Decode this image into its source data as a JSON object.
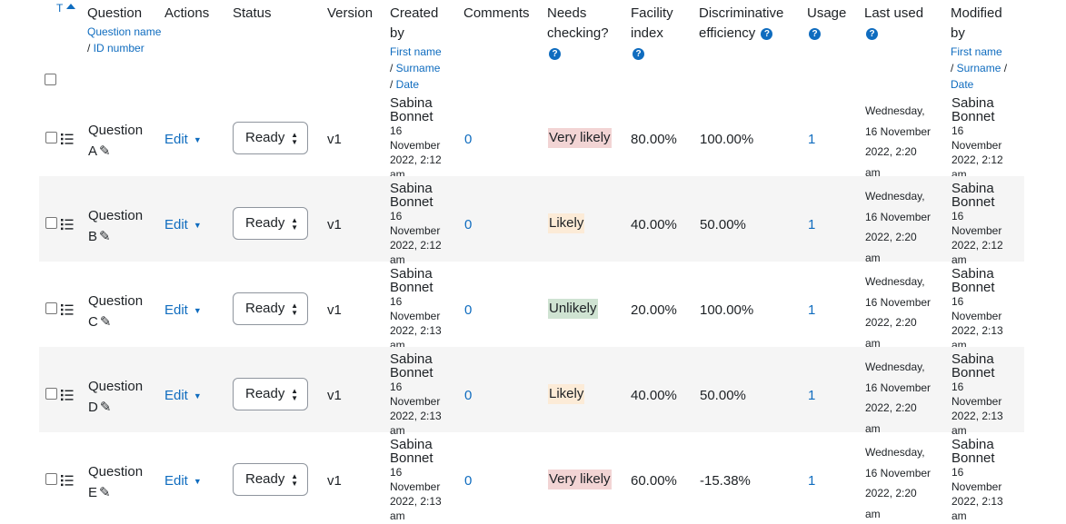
{
  "header": {
    "sort_t": "T",
    "question": "Question",
    "question_name": "Question name",
    "id_number": "ID number",
    "actions": "Actions",
    "status": "Status",
    "version": "Version",
    "created_by_1": "Created",
    "created_by_2": "by",
    "first_name": "First name",
    "surname": "Surname",
    "date": "Date",
    "comments": "Comments",
    "needs_checking_1": "Needs",
    "needs_checking_2": "checking?",
    "facility_1": "Facility",
    "facility_2": "index",
    "disc_1": "Discriminative",
    "disc_2": "efficiency",
    "usage": "Usage",
    "last_used": "Last used",
    "modified_by_1": "Modified",
    "modified_by_2": "by",
    "help_glyph": "?"
  },
  "colors": {
    "link": "#0f6cbf",
    "very_likely_bg": "#f2d4d4",
    "likely_bg": "#fcebd7",
    "unlikely_bg": "#cfe3d2",
    "stripe": "#f5f5f5"
  },
  "rows": [
    {
      "name_1": "Question",
      "name_2": "A",
      "action": "Edit",
      "status": "Ready",
      "version": "v1",
      "creator_first": "Sabina",
      "creator_last": "Bonnet",
      "created_1": "16",
      "created_2": "November",
      "created_3": "2022, 2:12",
      "created_4": "am",
      "comments": "0",
      "needs": "Very likely",
      "needs_level": "very_likely",
      "facility": "80.00%",
      "disc": "100.00%",
      "usage": "1",
      "last_1": "Wednesday,",
      "last_2": "16 November",
      "last_3": "2022, 2:20",
      "last_4": "am",
      "mod_first": "Sabina",
      "mod_last": "Bonnet",
      "mod_1": "16",
      "mod_2": "November",
      "mod_3": "2022, 2:12",
      "mod_4": "am"
    },
    {
      "name_1": "Question",
      "name_2": "B",
      "action": "Edit",
      "status": "Ready",
      "version": "v1",
      "creator_first": "Sabina",
      "creator_last": "Bonnet",
      "created_1": "16",
      "created_2": "November",
      "created_3": "2022, 2:12",
      "created_4": "am",
      "comments": "0",
      "needs": "Likely",
      "needs_level": "likely",
      "facility": "40.00%",
      "disc": "50.00%",
      "usage": "1",
      "last_1": "Wednesday,",
      "last_2": "16 November",
      "last_3": "2022, 2:20",
      "last_4": "am",
      "mod_first": "Sabina",
      "mod_last": "Bonnet",
      "mod_1": "16",
      "mod_2": "November",
      "mod_3": "2022, 2:12",
      "mod_4": "am"
    },
    {
      "name_1": "Question",
      "name_2": "C",
      "action": "Edit",
      "status": "Ready",
      "version": "v1",
      "creator_first": "Sabina",
      "creator_last": "Bonnet",
      "created_1": "16",
      "created_2": "November",
      "created_3": "2022, 2:13",
      "created_4": "am",
      "comments": "0",
      "needs": "Unlikely",
      "needs_level": "unlikely",
      "facility": "20.00%",
      "disc": "100.00%",
      "usage": "1",
      "last_1": "Wednesday,",
      "last_2": "16 November",
      "last_3": "2022, 2:20",
      "last_4": "am",
      "mod_first": "Sabina",
      "mod_last": "Bonnet",
      "mod_1": "16",
      "mod_2": "November",
      "mod_3": "2022, 2:13",
      "mod_4": "am"
    },
    {
      "name_1": "Question",
      "name_2": "D",
      "action": "Edit",
      "status": "Ready",
      "version": "v1",
      "creator_first": "Sabina",
      "creator_last": "Bonnet",
      "created_1": "16",
      "created_2": "November",
      "created_3": "2022, 2:13",
      "created_4": "am",
      "comments": "0",
      "needs": "Likely",
      "needs_level": "likely",
      "facility": "40.00%",
      "disc": "50.00%",
      "usage": "1",
      "last_1": "Wednesday,",
      "last_2": "16 November",
      "last_3": "2022, 2:20",
      "last_4": "am",
      "mod_first": "Sabina",
      "mod_last": "Bonnet",
      "mod_1": "16",
      "mod_2": "November",
      "mod_3": "2022, 2:13",
      "mod_4": "am"
    },
    {
      "name_1": "Question",
      "name_2": "E",
      "action": "Edit",
      "status": "Ready",
      "version": "v1",
      "creator_first": "Sabina",
      "creator_last": "Bonnet",
      "created_1": "16",
      "created_2": "November",
      "created_3": "2022, 2:13",
      "created_4": "am",
      "comments": "0",
      "needs": "Very likely",
      "needs_level": "very_likely",
      "facility": "60.00%",
      "disc": "-15.38%",
      "usage": "1",
      "last_1": "Wednesday,",
      "last_2": "16 November",
      "last_3": "2022, 2:20",
      "last_4": "am",
      "mod_first": "Sabina",
      "mod_last": "Bonnet",
      "mod_1": "16",
      "mod_2": "November",
      "mod_3": "2022, 2:13",
      "mod_4": "am"
    }
  ]
}
